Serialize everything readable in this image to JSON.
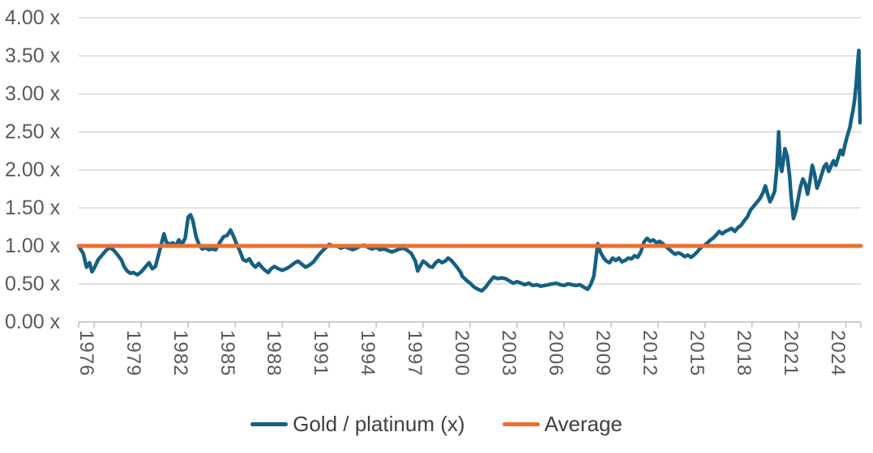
{
  "colors": {
    "series_gold_platinum": "#156082",
    "series_average": "#E97132",
    "tick_text": "#595959",
    "legend_text": "#404040",
    "gridline": "#D9D9D9",
    "axis_line": "#BFBFBF"
  },
  "chart_data": {
    "type": "line",
    "title": "",
    "xlabel": "",
    "ylabel": "",
    "grid": "horizontal",
    "legend_position": "bottom-center",
    "ylim": [
      0,
      4
    ],
    "xlim": [
      1975.5,
      2025.45
    ],
    "y_ticks": [
      {
        "value": 0.0,
        "label": "0.00 x"
      },
      {
        "value": 0.5,
        "label": "0.50 x"
      },
      {
        "value": 1.0,
        "label": "1.00 x"
      },
      {
        "value": 1.5,
        "label": "1.50 x"
      },
      {
        "value": 2.0,
        "label": "2.00 x"
      },
      {
        "value": 2.5,
        "label": "2.50 x"
      },
      {
        "value": 3.0,
        "label": "3.00 x"
      },
      {
        "value": 3.5,
        "label": "3.50 x"
      },
      {
        "value": 4.0,
        "label": "4.00 x"
      }
    ],
    "x_ticks": [
      {
        "value": 1976,
        "label": "1976"
      },
      {
        "value": 1979,
        "label": "1979"
      },
      {
        "value": 1982,
        "label": "1982"
      },
      {
        "value": 1985,
        "label": "1985"
      },
      {
        "value": 1988,
        "label": "1988"
      },
      {
        "value": 1991,
        "label": "1991"
      },
      {
        "value": 1994,
        "label": "1994"
      },
      {
        "value": 1997,
        "label": "1997"
      },
      {
        "value": 2000,
        "label": "2000"
      },
      {
        "value": 2003,
        "label": "2003"
      },
      {
        "value": 2006,
        "label": "2006"
      },
      {
        "value": 2009,
        "label": "2009"
      },
      {
        "value": 2012,
        "label": "2012"
      },
      {
        "value": 2015,
        "label": "2015"
      },
      {
        "value": 2018,
        "label": "2018"
      },
      {
        "value": 2021,
        "label": "2021"
      },
      {
        "value": 2024,
        "label": "2024"
      }
    ],
    "series": [
      {
        "name": "Gold / platinum (x)",
        "color": "#156082",
        "x": [
          1975.55,
          1975.8,
          1976.0,
          1976.2,
          1976.35,
          1976.5,
          1976.75,
          1977.0,
          1977.25,
          1977.5,
          1977.75,
          1978.0,
          1978.25,
          1978.4,
          1978.6,
          1978.8,
          1979.0,
          1979.25,
          1979.5,
          1979.75,
          1980.0,
          1980.2,
          1980.4,
          1980.6,
          1980.8,
          1980.95,
          1981.1,
          1981.3,
          1981.5,
          1981.7,
          1981.9,
          1982.1,
          1982.3,
          1982.5,
          1982.65,
          1982.8,
          1983.0,
          1983.2,
          1983.4,
          1983.6,
          1983.8,
          1984.0,
          1984.25,
          1984.5,
          1984.75,
          1985.0,
          1985.2,
          1985.4,
          1985.6,
          1985.8,
          1986.0,
          1986.2,
          1986.4,
          1986.6,
          1986.8,
          1987.0,
          1987.2,
          1987.4,
          1987.6,
          1987.8,
          1988.0,
          1988.25,
          1988.5,
          1988.75,
          1989.0,
          1989.25,
          1989.5,
          1989.75,
          1990.0,
          1990.25,
          1990.5,
          1990.75,
          1991.0,
          1991.25,
          1991.5,
          1991.75,
          1992.0,
          1992.25,
          1992.5,
          1992.75,
          1993.0,
          1993.25,
          1993.5,
          1993.75,
          1994.0,
          1994.25,
          1994.5,
          1994.75,
          1995.0,
          1995.25,
          1995.5,
          1995.75,
          1996.0,
          1996.25,
          1996.5,
          1996.75,
          1997.0,
          1997.15,
          1997.3,
          1997.5,
          1997.7,
          1997.9,
          1998.1,
          1998.3,
          1998.5,
          1998.7,
          1998.9,
          1999.1,
          1999.3,
          1999.5,
          1999.7,
          1999.9,
          2000.0,
          2000.25,
          2000.5,
          2000.75,
          2001.0,
          2001.25,
          2001.5,
          2001.75,
          2002.0,
          2002.25,
          2002.5,
          2002.75,
          2003.0,
          2003.25,
          2003.5,
          2003.75,
          2004.0,
          2004.25,
          2004.5,
          2004.75,
          2005.0,
          2005.25,
          2005.5,
          2005.75,
          2006.0,
          2006.25,
          2006.5,
          2006.75,
          2007.0,
          2007.25,
          2007.5,
          2007.75,
          2008.0,
          2008.2,
          2008.4,
          2008.55,
          2008.65,
          2008.8,
          2009.0,
          2009.2,
          2009.4,
          2009.6,
          2009.8,
          2010.0,
          2010.2,
          2010.4,
          2010.6,
          2010.8,
          2011.0,
          2011.2,
          2011.4,
          2011.6,
          2011.8,
          2012.0,
          2012.2,
          2012.4,
          2012.6,
          2012.8,
          2013.0,
          2013.2,
          2013.4,
          2013.6,
          2013.8,
          2014.0,
          2014.2,
          2014.4,
          2014.6,
          2014.8,
          2015.0,
          2015.2,
          2015.4,
          2015.6,
          2015.8,
          2016.0,
          2016.2,
          2016.4,
          2016.6,
          2016.8,
          2017.0,
          2017.2,
          2017.4,
          2017.6,
          2017.8,
          2018.0,
          2018.2,
          2018.4,
          2018.6,
          2018.8,
          2019.0,
          2019.2,
          2019.35,
          2019.5,
          2019.65,
          2019.8,
          2019.95,
          2020.1,
          2020.2,
          2020.3,
          2020.4,
          2020.5,
          2020.6,
          2020.75,
          2020.9,
          2021.0,
          2021.15,
          2021.3,
          2021.45,
          2021.6,
          2021.75,
          2021.9,
          2022.05,
          2022.2,
          2022.35,
          2022.5,
          2022.65,
          2022.8,
          2022.95,
          2023.1,
          2023.25,
          2023.4,
          2023.55,
          2023.7,
          2023.85,
          2024.0,
          2024.15,
          2024.3,
          2024.45,
          2024.6,
          2024.75,
          2024.85,
          2024.95,
          2025.05,
          2025.15,
          2025.25,
          2025.32,
          2025.4
        ],
        "y": [
          0.98,
          0.9,
          0.72,
          0.78,
          0.66,
          0.71,
          0.82,
          0.88,
          0.94,
          0.98,
          0.94,
          0.88,
          0.81,
          0.73,
          0.67,
          0.64,
          0.65,
          0.62,
          0.66,
          0.72,
          0.78,
          0.7,
          0.73,
          0.88,
          1.04,
          1.16,
          1.05,
          1.02,
          1.04,
          1.0,
          1.08,
          1.02,
          1.1,
          1.38,
          1.41,
          1.33,
          1.12,
          1.01,
          0.96,
          0.98,
          0.95,
          0.96,
          0.95,
          1.04,
          1.12,
          1.14,
          1.21,
          1.12,
          1.02,
          0.93,
          0.82,
          0.8,
          0.83,
          0.76,
          0.72,
          0.77,
          0.72,
          0.68,
          0.65,
          0.7,
          0.73,
          0.7,
          0.68,
          0.7,
          0.73,
          0.77,
          0.8,
          0.76,
          0.72,
          0.75,
          0.79,
          0.86,
          0.92,
          0.97,
          1.02,
          1.0,
          1.0,
          0.97,
          0.99,
          0.97,
          0.95,
          0.97,
          1.0,
          1.01,
          0.98,
          0.96,
          0.98,
          0.95,
          0.96,
          0.94,
          0.92,
          0.94,
          0.96,
          0.97,
          0.94,
          0.9,
          0.8,
          0.67,
          0.73,
          0.8,
          0.77,
          0.73,
          0.72,
          0.78,
          0.81,
          0.78,
          0.8,
          0.84,
          0.81,
          0.76,
          0.71,
          0.65,
          0.6,
          0.55,
          0.51,
          0.46,
          0.43,
          0.41,
          0.46,
          0.53,
          0.59,
          0.57,
          0.58,
          0.57,
          0.54,
          0.51,
          0.53,
          0.51,
          0.49,
          0.51,
          0.48,
          0.49,
          0.47,
          0.48,
          0.49,
          0.5,
          0.51,
          0.49,
          0.48,
          0.5,
          0.49,
          0.48,
          0.49,
          0.46,
          0.43,
          0.49,
          0.6,
          0.85,
          1.03,
          0.93,
          0.85,
          0.8,
          0.78,
          0.84,
          0.81,
          0.84,
          0.79,
          0.81,
          0.84,
          0.83,
          0.87,
          0.85,
          0.92,
          1.05,
          1.1,
          1.06,
          1.08,
          1.04,
          1.06,
          1.03,
          0.99,
          0.96,
          0.92,
          0.89,
          0.91,
          0.89,
          0.86,
          0.88,
          0.85,
          0.88,
          0.92,
          0.97,
          1.0,
          1.03,
          1.07,
          1.1,
          1.14,
          1.19,
          1.16,
          1.19,
          1.21,
          1.23,
          1.19,
          1.24,
          1.27,
          1.33,
          1.38,
          1.47,
          1.52,
          1.57,
          1.62,
          1.7,
          1.79,
          1.68,
          1.58,
          1.64,
          1.72,
          2.05,
          2.5,
          2.1,
          1.98,
          2.12,
          2.28,
          2.18,
          1.92,
          1.65,
          1.36,
          1.46,
          1.62,
          1.78,
          1.88,
          1.82,
          1.68,
          1.85,
          2.06,
          1.94,
          1.76,
          1.84,
          1.94,
          2.04,
          2.08,
          1.98,
          2.05,
          2.12,
          2.06,
          2.16,
          2.26,
          2.2,
          2.34,
          2.46,
          2.56,
          2.68,
          2.78,
          2.92,
          3.12,
          3.4,
          3.57,
          2.62
        ]
      },
      {
        "name": "Average",
        "color": "#E97132",
        "style": "constant",
        "value": 1.0
      }
    ]
  }
}
